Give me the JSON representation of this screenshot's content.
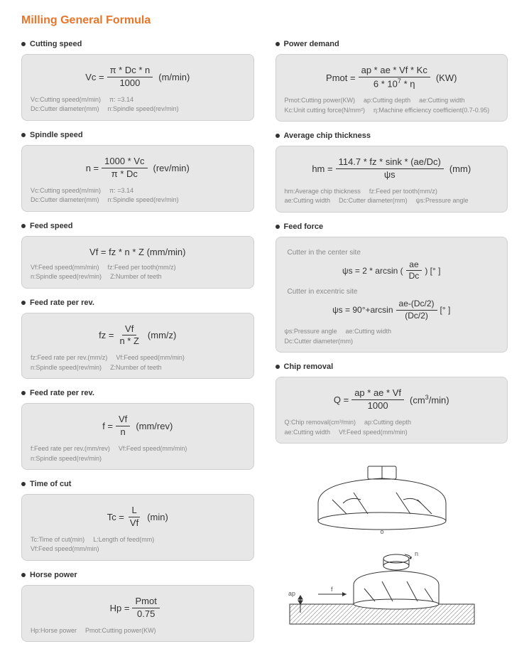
{
  "title": "Milling General Formula",
  "colors": {
    "title": "#e6762b",
    "card_bg": "#e7e7e7",
    "card_border": "#cfcfcf",
    "text": "#555555",
    "muted": "#888888",
    "formula": "#333333"
  },
  "left": [
    {
      "title": "Cutting speed",
      "formula": {
        "lhs": "Vc =",
        "num": "π * Dc * n",
        "den": "1000",
        "unit": "(m/min)"
      },
      "legend": [
        [
          "Vc:Cutting speed(m/min)",
          "π: =3.14"
        ],
        [
          "Dc:Cutter diameter(mm)",
          "n:Spindle speed(rev/min)"
        ]
      ]
    },
    {
      "title": "Spindle speed",
      "formula": {
        "lhs": "n =",
        "num": "1000 * Vc",
        "den": "π * Dc",
        "unit": "(rev/min)"
      },
      "legend": [
        [
          "Vc:Cutting speed(m/min)",
          "π: =3.14"
        ],
        [
          "Dc:Cutter diameter(mm)",
          "n:Spindle speed(rev/min)"
        ]
      ]
    },
    {
      "title": "Feed speed",
      "formula": {
        "inline": "Vf = fz * n * Z  (mm/min)"
      },
      "legend": [
        [
          "Vf:Feed speed(mm/min)",
          "fz:Feed per tooth(mm/z)"
        ],
        [
          "n:Spindle speed(rev/min)",
          "Z:Number of teeth"
        ]
      ]
    },
    {
      "title": "Feed rate per rev.",
      "formula": {
        "lhs": "fz =",
        "num": "Vf",
        "den": "n * Z",
        "unit": "(mm/z)"
      },
      "legend": [
        [
          "fz:Feed rate per rev.(mm/z)",
          "Vf:Feed speed(mm/min)"
        ],
        [
          "n:Spindle speed(rev/min)",
          "Z:Number of teeth"
        ]
      ]
    },
    {
      "title": "Feed rate per rev.",
      "formula": {
        "lhs": "f =",
        "num": "Vf",
        "den": "n",
        "unit": "(mm/rev)"
      },
      "legend": [
        [
          "f:Feed rate per rev.(mm/rev)",
          "Vf:Feed speed(mm/min)"
        ],
        [
          "n:Spindle speed(rev/min)"
        ]
      ]
    },
    {
      "title": "Time of cut",
      "formula": {
        "lhs": "Tc =",
        "num": "L",
        "den": "Vf",
        "unit": "(min)"
      },
      "legend": [
        [
          "Tc:Time of cut(min)",
          "L:Length of feed(mm)"
        ],
        [
          "Vf:Feed speed(mm/min)"
        ]
      ]
    },
    {
      "title": "Horse power",
      "formula": {
        "lhs": "Hp =",
        "num": "Pmot",
        "den": "0.75",
        "unit": ""
      },
      "legend": [
        [
          "Hp:Horse power",
          "Pmot:Cutting power(KW)"
        ]
      ]
    }
  ],
  "right": [
    {
      "title": "Power demand",
      "formula": {
        "lhs": "Pmot =",
        "num": "ap * ae * Vf * Kc",
        "den_html": "6 * 10<sup>7</sup> * η",
        "unit": "(KW)"
      },
      "legend": [
        [
          "Pmot:Cutting power(KW)",
          "ap:Cutting depth",
          "ae:Cutting width"
        ],
        [
          "Kc:Unit cutting force(N/mm²)",
          "η:Machine efficiency coefficient(0.7-0.95)"
        ]
      ]
    },
    {
      "title": "Average chip thickness",
      "formula": {
        "lhs": "hm =",
        "num": "114.7 * fz * sink * (ae/Dc)",
        "den": "ψs",
        "unit": "(mm)"
      },
      "legend": [
        [
          "hm:Average chip thickness",
          "fz:Feed per tooth(mm/z)"
        ],
        [
          "ae:Cutting width",
          "Dc:Cutter diameter(mm)",
          "ψs:Pressure angle"
        ]
      ]
    },
    {
      "title": "Feed force",
      "feedforce": {
        "sub1": "Cutter in the center site",
        "f1": {
          "lhs": "ψs =  2 * arcsin (",
          "num": "ae",
          "den": "Dc",
          "tail": ")  [° ]"
        },
        "sub2": "Cutter in excentric site",
        "f2": {
          "lhs": "ψs =  90°+arcsin",
          "num": "ae-(Dc/2)",
          "den": "(Dc/2)",
          "tail": "[° ]"
        },
        "legend": [
          [
            "ψs:Pressure angle",
            "ae:Cutting width"
          ],
          [
            "Dc:Cutter diameter(mm)"
          ]
        ]
      }
    },
    {
      "title": "Chip removal",
      "formula": {
        "lhs": "Q =",
        "num": "ap * ae * Vf",
        "den": "1000",
        "unit_html": "(cm<sup>3</sup>/min)"
      },
      "legend": [
        [
          "Q:Chip removal(cm³/min)",
          "ap:Cutting depth"
        ],
        [
          "ae:Cutting width",
          "Vf:Feed speed(mm/min)"
        ]
      ]
    }
  ],
  "diagram_labels": {
    "ap": "ap",
    "f": "f",
    "n": "n",
    "o": "o"
  }
}
